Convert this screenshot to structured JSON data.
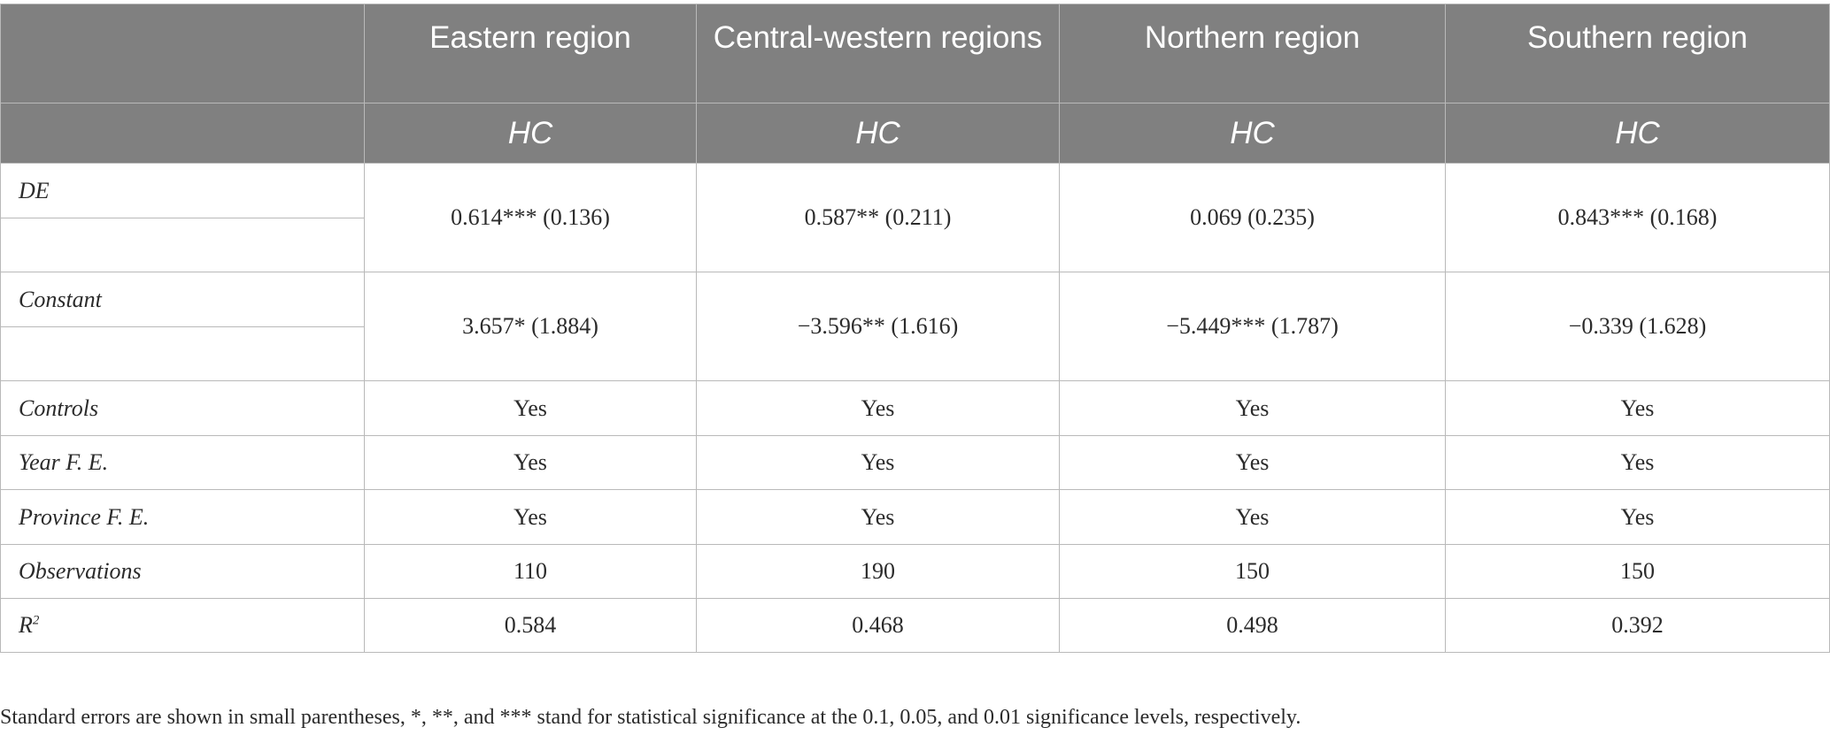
{
  "table": {
    "columns": [
      "",
      "Eastern region",
      "Central-western regions",
      "Northern region",
      "Southern region"
    ],
    "dependent_var": [
      "",
      "HC",
      "HC",
      "HC",
      "HC"
    ],
    "rows": [
      {
        "label": "DE",
        "values": [
          "0.614*** (0.136)",
          "0.587** (0.211)",
          "0.069 (0.235)",
          "0.843*** (0.168)"
        ]
      },
      {
        "label": "Constant",
        "values": [
          "3.657* (1.884)",
          "−3.596** (1.616)",
          "−5.449*** (1.787)",
          "−0.339 (1.628)"
        ]
      },
      {
        "label": "Controls",
        "values": [
          "Yes",
          "Yes",
          "Yes",
          "Yes"
        ]
      },
      {
        "label": "Year F. E.",
        "values": [
          "Yes",
          "Yes",
          "Yes",
          "Yes"
        ]
      },
      {
        "label": "Province F. E.",
        "values": [
          "Yes",
          "Yes",
          "Yes",
          "Yes"
        ]
      },
      {
        "label": "Observations",
        "values": [
          "110",
          "190",
          "150",
          "150"
        ]
      },
      {
        "label_base": "R",
        "label_sup": "2",
        "values": [
          "0.584",
          "0.468",
          "0.498",
          "0.392"
        ]
      }
    ]
  },
  "footnote": "Standard errors are shown in small parentheses, *, **, and *** stand for statistical significance at the 0.1, 0.05, and 0.01 significance levels, respectively."
}
